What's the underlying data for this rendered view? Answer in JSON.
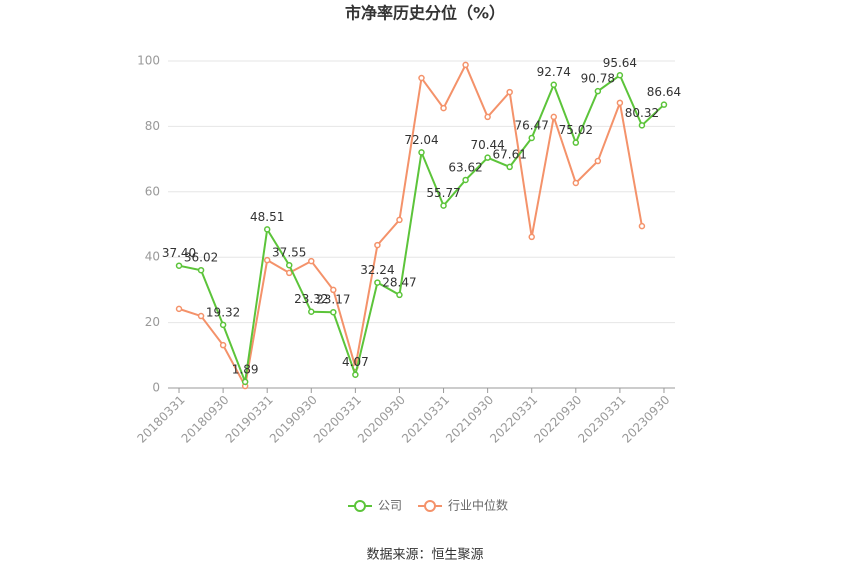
{
  "chart_data": {
    "type": "line",
    "title": "市净率历史分位（%）",
    "source": "数据来源：恒生聚源",
    "categories": [
      "20180331",
      null,
      "20180930",
      null,
      "20190331",
      null,
      "20190930",
      null,
      "20200331",
      null,
      "20200930",
      null,
      "20210331",
      null,
      "20210930",
      null,
      "20220331",
      null,
      "20220930",
      null,
      "20230331",
      null,
      "20230930"
    ],
    "series": [
      {
        "name": "公司",
        "color": "#5cc43a",
        "values": [
          37.4,
          36.02,
          19.32,
          1.89,
          48.51,
          37.55,
          23.32,
          23.17,
          4.07,
          32.24,
          28.47,
          72.04,
          55.77,
          63.62,
          70.44,
          67.61,
          76.47,
          92.74,
          75.02,
          90.78,
          95.64,
          80.32,
          86.64
        ],
        "value_labels": [
          "37.40",
          "36.02",
          "19.32",
          "1.89",
          "48.51",
          "37.55",
          "23.32",
          "23.17",
          "4.07",
          "32.24",
          "28.47",
          "72.04",
          "55.77",
          "63.62",
          "70.44",
          "67.61",
          "76.47",
          "92.74",
          "75.02",
          "90.78",
          "95.64",
          "80.32",
          "86.64"
        ]
      },
      {
        "name": "行业中位数",
        "color": "#f4926a",
        "values": [
          24.2,
          22.0,
          13.1,
          0.6,
          39.1,
          35.2,
          38.8,
          30.0,
          6.4,
          43.7,
          51.4,
          94.8,
          85.6,
          98.8,
          82.9,
          90.5,
          46.2,
          82.9,
          62.7,
          69.4,
          87.2,
          49.5,
          null
        ]
      }
    ],
    "ylim": [
      0,
      100
    ],
    "yticks": [
      0,
      20,
      40,
      60,
      80,
      100
    ],
    "grid": true,
    "legend": "bottom"
  }
}
